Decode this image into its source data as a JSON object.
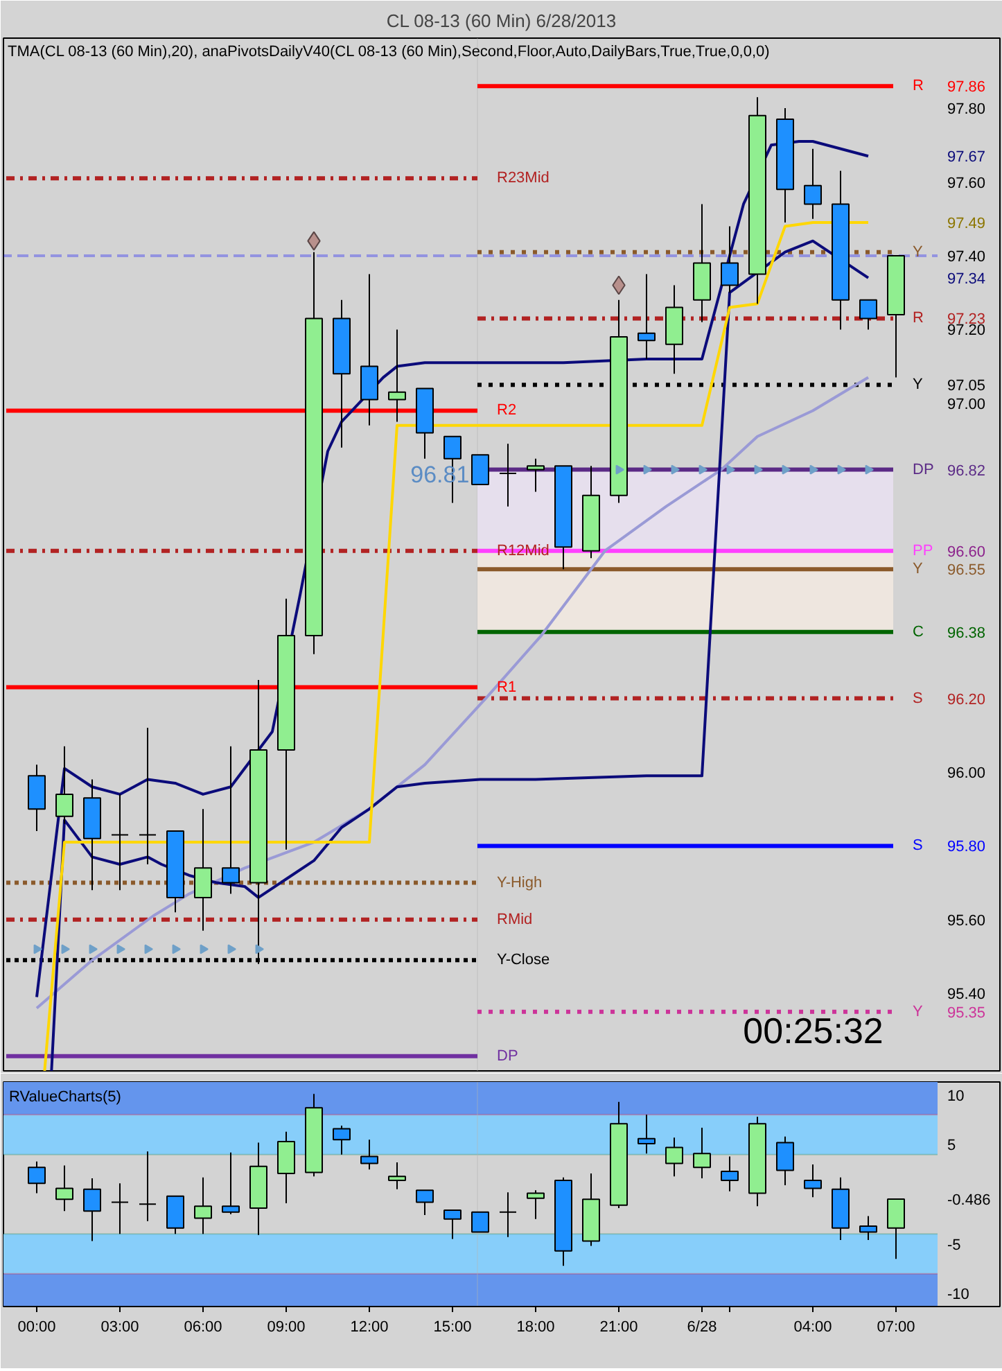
{
  "chart_data": [
    {
      "type": "candlestick",
      "title": "CL 08-13 (60 Min) 6/28/2013",
      "subtitle": "TMA(CL 08-13 (60 Min),20), anaPivotsDailyV40(CL 08-13 (60 Min),Second,Floor,Auto,DailyBars,True,True,0,0,0)",
      "x": [
        "2013-06-27T00:00",
        "2013-06-27T01:00",
        "2013-06-27T02:00",
        "2013-06-27T03:00",
        "2013-06-27T04:00",
        "2013-06-27T05:00",
        "2013-06-27T06:00",
        "2013-06-27T07:00",
        "2013-06-27T08:00",
        "2013-06-27T09:00",
        "2013-06-27T10:00",
        "2013-06-27T11:00",
        "2013-06-27T12:00",
        "2013-06-27T13:00",
        "2013-06-27T14:00",
        "2013-06-27T15:00",
        "2013-06-27T16:00",
        "2013-06-27T17:00",
        "2013-06-27T18:00",
        "2013-06-27T19:00",
        "2013-06-27T20:00",
        "2013-06-27T21:00",
        "2013-06-27T22:00",
        "2013-06-27T23:00",
        "2013-06-28T00:00",
        "2013-06-28T01:00",
        "2013-06-28T02:00",
        "2013-06-28T03:00",
        "2013-06-28T04:00",
        "2013-06-28T05:00",
        "2013-06-28T06:00",
        "2013-06-28T07:00"
      ],
      "ohlc": [
        [
          95.99,
          96.02,
          95.84,
          95.9
        ],
        [
          95.88,
          96.07,
          95.86,
          95.94
        ],
        [
          95.93,
          95.98,
          95.68,
          95.82
        ],
        [
          95.83,
          95.94,
          95.68,
          95.83
        ],
        [
          95.83,
          96.12,
          95.75,
          95.83
        ],
        [
          95.84,
          95.84,
          95.62,
          95.66
        ],
        [
          95.66,
          95.9,
          95.57,
          95.74
        ],
        [
          95.74,
          96.07,
          95.67,
          95.7
        ],
        [
          95.7,
          96.25,
          95.48,
          96.06
        ],
        [
          96.06,
          96.47,
          95.79,
          96.37
        ],
        [
          96.37,
          97.41,
          96.32,
          97.23
        ],
        [
          97.23,
          97.28,
          96.88,
          97.08
        ],
        [
          97.1,
          97.35,
          96.94,
          97.01
        ],
        [
          97.01,
          97.2,
          96.95,
          97.03
        ],
        [
          97.04,
          97.04,
          96.85,
          96.92
        ],
        [
          96.91,
          96.91,
          96.73,
          96.85
        ],
        [
          96.86,
          96.86,
          96.78,
          96.78
        ],
        [
          96.81,
          96.89,
          96.72,
          96.81
        ],
        [
          96.82,
          96.85,
          96.76,
          96.83
        ],
        [
          96.83,
          96.83,
          96.55,
          96.61
        ],
        [
          96.6,
          96.83,
          96.58,
          96.75
        ],
        [
          96.75,
          97.28,
          96.73,
          97.18
        ],
        [
          97.19,
          97.35,
          97.12,
          97.17
        ],
        [
          97.16,
          97.32,
          97.08,
          97.26
        ],
        [
          97.28,
          97.54,
          97.22,
          97.38
        ],
        [
          97.38,
          97.48,
          97.3,
          97.32
        ],
        [
          97.35,
          97.83,
          97.27,
          97.78
        ],
        [
          97.77,
          97.8,
          97.49,
          97.58
        ],
        [
          97.59,
          97.69,
          97.5,
          97.54
        ],
        [
          97.54,
          97.63,
          97.2,
          97.28
        ],
        [
          97.28,
          97.28,
          97.2,
          97.23
        ],
        [
          97.24,
          97.4,
          97.07,
          97.4
        ]
      ],
      "colors": [
        "#1e90ff",
        "#90ee90",
        "#1e90ff",
        "#000000",
        "#000000",
        "#1e90ff",
        "#90ee90",
        "#1e90ff",
        "#90ee90",
        "#90ee90",
        "#90ee90",
        "#1e90ff",
        "#1e90ff",
        "#90ee90",
        "#1e90ff",
        "#1e90ff",
        "#1e90ff",
        "#000000",
        "#90ee90",
        "#1e90ff",
        "#90ee90",
        "#90ee90",
        "#1e90ff",
        "#90ee90",
        "#90ee90",
        "#1e90ff",
        "#90ee90",
        "#1e90ff",
        "#1e90ff",
        "#1e90ff",
        "#1e90ff",
        "#90ee90"
      ],
      "xlim": [
        "2013-06-26T22:48",
        "2013-06-28T10:45"
      ],
      "ylim": [
        95.19,
        97.99
      ],
      "yticks": [
        {
          "value": 97.86,
          "label": "97.86"
        },
        {
          "value": 97.8,
          "label": "97.80"
        },
        {
          "value": 97.67,
          "label": "97.67"
        },
        {
          "value": 97.6,
          "label": "97.60"
        },
        {
          "value": 97.49,
          "label": "97.49"
        },
        {
          "value": 97.4,
          "label": "97.40"
        },
        {
          "value": 97.34,
          "label": "97.34"
        },
        {
          "value": 97.23,
          "label": "97.23"
        },
        {
          "value": 97.2,
          "label": "97.20"
        },
        {
          "value": 97.05,
          "label": "97.05"
        },
        {
          "value": 97.0,
          "label": "97.00"
        },
        {
          "value": 96.82,
          "label": "96.82"
        },
        {
          "value": 96.6,
          "label": "96.60"
        },
        {
          "value": 96.55,
          "label": "96.55"
        },
        {
          "value": 96.38,
          "label": "96.38"
        },
        {
          "value": 96.2,
          "label": "96.20"
        },
        {
          "value": 96.0,
          "label": "96.00"
        },
        {
          "value": 95.8,
          "label": "95.80"
        },
        {
          "value": 95.6,
          "label": "95.60"
        },
        {
          "value": 95.4,
          "label": "95.40"
        },
        {
          "value": 95.35,
          "label": "95.35"
        }
      ],
      "tick_labels": "y",
      "ref_lines": [
        {
          "axis": "y",
          "value": 97.4,
          "color": "#0000ff",
          "line_style": "dashed"
        },
        {
          "axis": "x",
          "value": "2013-06-27T15:54",
          "color": "#b4b4b4"
        }
      ],
      "annotations": [
        "96.81",
        "00:25:32"
      ],
      "series": [
        {
          "type": "line",
          "name": "R23Mid",
          "x": [
            "2013-06-26T22:54",
            "2013-06-27T15:54"
          ],
          "values": [
            97.61,
            97.61
          ],
          "color": "#b22222",
          "line_style": "dashdot"
        },
        {
          "type": "line",
          "name": "R2",
          "x": [
            "2013-06-26T22:54",
            "2013-06-27T15:54"
          ],
          "values": [
            96.98,
            96.98
          ],
          "color": "#ff0000",
          "line_style": "solid"
        },
        {
          "type": "line",
          "name": "R12Mid",
          "x": [
            "2013-06-26T22:54",
            "2013-06-27T15:54"
          ],
          "values": [
            96.6,
            96.6
          ],
          "color": "#b22222",
          "line_style": "dashdot"
        },
        {
          "type": "line",
          "name": "R1",
          "x": [
            "2013-06-26T22:54",
            "2013-06-27T15:54"
          ],
          "values": [
            96.23,
            96.23
          ],
          "color": "#ff0000",
          "line_style": "solid"
        },
        {
          "type": "line",
          "name": "Y-High",
          "x": [
            "2013-06-26T22:54",
            "2013-06-27T15:54"
          ],
          "values": [
            95.7,
            95.7
          ],
          "color": "#8b5a2b",
          "line_style": "dotted"
        },
        {
          "type": "line",
          "name": "RMid",
          "x": [
            "2013-06-26T22:54",
            "2013-06-27T15:54"
          ],
          "values": [
            95.6,
            95.6
          ],
          "color": "#b22222",
          "line_style": "dashdot"
        },
        {
          "type": "line",
          "name": "Y-Close",
          "x": [
            "2013-06-26T22:54",
            "2013-06-27T15:54"
          ],
          "values": [
            95.49,
            95.49
          ],
          "color": "#000000",
          "line_style": "dotted"
        },
        {
          "type": "line",
          "name": "DP",
          "x": [
            "2013-06-26T22:54",
            "2013-06-27T15:54"
          ],
          "values": [
            95.23,
            95.23
          ],
          "color": "#7030a0",
          "line_style": "solid"
        },
        {
          "type": "line",
          "name": "R",
          "x": [
            "2013-06-27T15:54",
            "2013-06-28T06:54"
          ],
          "values": [
            97.86,
            97.86
          ],
          "color": "#ff0000",
          "line_style": "solid"
        },
        {
          "type": "line",
          "name": "Y",
          "x": [
            "2013-06-27T15:54",
            "2013-06-28T06:54"
          ],
          "values": [
            97.41,
            97.41
          ],
          "color": "#8b5a2b",
          "line_style": "dotted"
        },
        {
          "type": "line",
          "name": "R",
          "x": [
            "2013-06-27T15:54",
            "2013-06-28T06:54"
          ],
          "values": [
            97.23,
            97.23
          ],
          "color": "#b22222",
          "line_style": "dashdot"
        },
        {
          "type": "line",
          "name": "Y",
          "x": [
            "2013-06-27T15:54",
            "2013-06-28T06:54"
          ],
          "values": [
            97.05,
            97.05
          ],
          "color": "#000000",
          "line_style": "dotted"
        },
        {
          "type": "line",
          "name": "DP",
          "x": [
            "2013-06-27T15:54",
            "2013-06-28T06:54"
          ],
          "values": [
            96.82,
            96.82
          ],
          "color": "#5b2a86",
          "line_style": "solid",
          "lower": [
            96.6,
            96.6
          ],
          "upper": [
            96.82,
            96.82
          ]
        },
        {
          "type": "line",
          "name": "PP",
          "x": [
            "2013-06-27T15:54",
            "2013-06-28T06:54"
          ],
          "values": [
            96.6,
            96.6
          ],
          "color": "#ff40ff",
          "line_style": "solid"
        },
        {
          "type": "line",
          "name": "Y",
          "x": [
            "2013-06-27T15:54",
            "2013-06-28T06:54"
          ],
          "values": [
            96.55,
            96.55
          ],
          "color": "#8b5a2b",
          "line_style": "solid",
          "lower": [
            96.38,
            96.38
          ],
          "upper": [
            96.6,
            96.6
          ]
        },
        {
          "type": "line",
          "name": "C",
          "x": [
            "2013-06-27T15:54",
            "2013-06-28T06:54"
          ],
          "values": [
            96.38,
            96.38
          ],
          "color": "#006400",
          "line_style": "solid"
        },
        {
          "type": "line",
          "name": "S",
          "x": [
            "2013-06-27T15:54",
            "2013-06-28T06:54"
          ],
          "values": [
            96.2,
            96.2
          ],
          "color": "#b22222",
          "line_style": "dashdot"
        },
        {
          "type": "line",
          "name": "S",
          "x": [
            "2013-06-27T15:54",
            "2013-06-28T06:54"
          ],
          "values": [
            95.8,
            95.8
          ],
          "color": "#0000ff",
          "line_style": "solid"
        },
        {
          "type": "line",
          "name": "Y",
          "x": [
            "2013-06-27T15:54",
            "2013-06-28T06:54"
          ],
          "values": [
            95.35,
            95.35
          ],
          "color": "#cc3399",
          "line_style": "dotted"
        },
        {
          "type": "line",
          "x": [
            "2013-06-27T00:00",
            "2013-06-27T02:00",
            "2013-06-27T04:12",
            "2013-06-27T05:30",
            "2013-06-27T07:30",
            "2013-06-27T10:00",
            "2013-06-27T12:00",
            "2013-06-27T14:00",
            "2013-06-27T16:12",
            "2013-06-27T18:12",
            "2013-06-27T20:30",
            "2013-06-27T22:42",
            "2013-06-28T00:42",
            "2013-06-28T02:00",
            "2013-06-28T04:00",
            "2013-06-28T06:00"
          ],
          "values": [
            95.36,
            95.49,
            95.61,
            95.67,
            95.74,
            95.81,
            95.9,
            96.02,
            96.2,
            96.37,
            96.6,
            96.72,
            96.82,
            96.91,
            96.98,
            97.07
          ],
          "color": "#9a9ad6"
        },
        {
          "type": "line",
          "x": [
            "2013-06-27T00:00",
            "2013-06-27T01:00",
            "2013-06-27T02:00",
            "2013-06-27T03:00",
            "2013-06-27T04:00",
            "2013-06-27T05:00",
            "2013-06-27T06:00",
            "2013-06-27T07:00",
            "2013-06-27T08:30",
            "2013-06-27T09:30",
            "2013-06-27T10:30",
            "2013-06-27T11:00",
            "2013-06-27T11:30",
            "2013-06-27T12:30",
            "2013-06-27T13:00",
            "2013-06-27T14:00",
            "2013-06-27T16:00",
            "2013-06-27T19:00",
            "2013-06-27T22:00",
            "2013-06-28T00:00",
            "2013-06-28T01:30",
            "2013-06-28T02:30",
            "2013-06-28T03:30",
            "2013-06-28T04:00",
            "2013-06-28T06:00"
          ],
          "values": [
            95.39,
            96.01,
            95.96,
            95.94,
            95.98,
            95.97,
            95.94,
            95.96,
            96.11,
            96.48,
            96.87,
            96.95,
            96.99,
            97.07,
            97.1,
            97.11,
            97.11,
            97.11,
            97.12,
            97.12,
            97.54,
            97.7,
            97.71,
            97.71,
            97.67
          ],
          "color": "#0b0b7a"
        },
        {
          "type": "line",
          "x": [
            "2013-06-27T00:32",
            "2013-06-27T01:00",
            "2013-06-27T02:00",
            "2013-06-27T03:00",
            "2013-06-27T04:00",
            "2013-06-27T04:30",
            "2013-06-27T05:30",
            "2013-06-27T06:30",
            "2013-06-27T07:30",
            "2013-06-27T08:00",
            "2013-06-27T09:00",
            "2013-06-27T10:00",
            "2013-06-27T11:00",
            "2013-06-27T12:00",
            "2013-06-27T13:00",
            "2013-06-27T14:00",
            "2013-06-27T16:00",
            "2013-06-27T18:00",
            "2013-06-27T22:00",
            "2013-06-28T00:00",
            "2013-06-28T01:00",
            "2013-06-28T03:00",
            "2013-06-28T04:00",
            "2013-06-28T06:00"
          ],
          "values": [
            95.19,
            95.87,
            95.77,
            95.75,
            95.77,
            95.75,
            95.72,
            95.7,
            95.69,
            95.66,
            95.71,
            95.76,
            95.85,
            95.9,
            95.96,
            95.97,
            95.98,
            95.98,
            95.99,
            95.99,
            97.3,
            97.41,
            97.44,
            97.34
          ],
          "color": "#0b0b7a"
        },
        {
          "type": "line",
          "x": [
            "2013-06-27T00:17",
            "2013-06-27T01:00",
            "2013-06-27T12:00",
            "2013-06-27T13:00",
            "2013-06-28T00:00",
            "2013-06-28T01:00",
            "2013-06-28T02:00",
            "2013-06-28T03:00",
            "2013-06-28T04:00",
            "2013-06-28T06:00"
          ],
          "values": [
            95.19,
            95.81,
            95.81,
            96.94,
            96.94,
            97.26,
            97.27,
            97.48,
            97.49,
            97.49
          ],
          "color": "#ffd700"
        },
        {
          "type": "scatter",
          "x": [
            "2013-06-27T10:00",
            "2013-06-27T21:00"
          ],
          "values": [
            97.44,
            97.32
          ],
          "color": "#b8908c",
          "marker": "diamond"
        },
        {
          "type": "scatter",
          "x": [
            "2013-06-27T00:00",
            "2013-06-27T01:00",
            "2013-06-27T02:00",
            "2013-06-27T03:00",
            "2013-06-27T04:00",
            "2013-06-27T05:00",
            "2013-06-27T06:00",
            "2013-06-27T07:00",
            "2013-06-27T08:00"
          ],
          "values": [
            95.52,
            95.52,
            95.52,
            95.52,
            95.52,
            95.52,
            95.52,
            95.52,
            95.52
          ],
          "color": "#6fa0c8",
          "marker": "triangle"
        },
        {
          "type": "scatter",
          "x": [
            "2013-06-27T21:00",
            "2013-06-27T22:00",
            "2013-06-27T23:00",
            "2013-06-28T00:00",
            "2013-06-28T01:00",
            "2013-06-28T02:00",
            "2013-06-28T03:00",
            "2013-06-28T04:00",
            "2013-06-28T05:00",
            "2013-06-28T06:00"
          ],
          "values": [
            96.82,
            96.82,
            96.82,
            96.82,
            96.82,
            96.82,
            96.82,
            96.82,
            96.82,
            96.82
          ],
          "color": "#6fa0c8",
          "marker": "triangle"
        }
      ]
    },
    {
      "type": "candlestick",
      "title": "RValueCharts(5)",
      "x": [
        "2013-06-27T00:00",
        "2013-06-27T01:00",
        "2013-06-27T02:00",
        "2013-06-27T03:00",
        "2013-06-27T04:00",
        "2013-06-27T05:00",
        "2013-06-27T06:00",
        "2013-06-27T07:00",
        "2013-06-27T08:00",
        "2013-06-27T09:00",
        "2013-06-27T10:00",
        "2013-06-27T11:00",
        "2013-06-27T12:00",
        "2013-06-27T13:00",
        "2013-06-27T14:00",
        "2013-06-27T15:00",
        "2013-06-27T16:00",
        "2013-06-27T17:00",
        "2013-06-27T18:00",
        "2013-06-27T19:00",
        "2013-06-27T20:00",
        "2013-06-27T21:00",
        "2013-06-27T22:00",
        "2013-06-27T23:00",
        "2013-06-28T00:00",
        "2013-06-28T01:00",
        "2013-06-28T02:00",
        "2013-06-28T03:00",
        "2013-06-28T04:00",
        "2013-06-28T05:00",
        "2013-06-28T06:00",
        "2013-06-28T07:00"
      ],
      "ohlc": [
        [
          2.7,
          3.3,
          0.1,
          1.1
        ],
        [
          -0.5,
          2.9,
          -1.7,
          0.6
        ],
        [
          0.5,
          1.6,
          -4.7,
          -1.7
        ],
        [
          -0.8,
          1.1,
          -4.0,
          -0.8
        ],
        [
          -1.0,
          4.3,
          -2.7,
          -1.0
        ],
        [
          -0.2,
          -0.2,
          -4.0,
          -3.4
        ],
        [
          -2.4,
          1.7,
          -4.0,
          -1.2
        ],
        [
          -1.2,
          4.2,
          -2.0,
          -1.8
        ],
        [
          -1.4,
          5.2,
          -4.1,
          2.8
        ],
        [
          2.1,
          6.3,
          -0.9,
          5.3
        ],
        [
          2.2,
          10.1,
          1.8,
          8.7
        ],
        [
          6.6,
          6.9,
          4.0,
          5.5
        ],
        [
          3.8,
          5.5,
          2.5,
          3.1
        ],
        [
          1.4,
          3.2,
          0.5,
          1.8
        ],
        [
          0.4,
          0.4,
          -2.1,
          -0.8
        ],
        [
          -1.6,
          -1.6,
          -4.5,
          -2.5
        ],
        [
          -1.8,
          -1.8,
          -3.8,
          -3.8
        ],
        [
          -1.8,
          0.2,
          -4.3,
          -1.8
        ],
        [
          -0.4,
          0.4,
          -2.5,
          0.1
        ],
        [
          1.4,
          1.7,
          -7.2,
          -5.7
        ],
        [
          -4.7,
          2.1,
          -5.2,
          -0.5
        ],
        [
          -1.1,
          9.3,
          -1.4,
          7.1
        ],
        [
          5.6,
          8.0,
          4.1,
          5.1
        ],
        [
          3.1,
          5.7,
          1.8,
          4.7
        ],
        [
          2.7,
          6.7,
          1.6,
          4.1
        ],
        [
          2.3,
          3.8,
          0.3,
          1.4
        ],
        [
          0.1,
          7.8,
          -1.2,
          7.1
        ],
        [
          5.2,
          5.8,
          0.9,
          2.4
        ],
        [
          1.4,
          3.0,
          -0.3,
          0.6
        ],
        [
          0.5,
          1.7,
          -4.6,
          -3.4
        ],
        [
          -3.2,
          -2.2,
          -4.6,
          -3.8
        ],
        [
          -3.4,
          -0.486,
          -6.5,
          -0.486
        ]
      ],
      "colors": [
        "#1e90ff",
        "#90ee90",
        "#1e90ff",
        "#000000",
        "#000000",
        "#1e90ff",
        "#90ee90",
        "#1e90ff",
        "#90ee90",
        "#90ee90",
        "#90ee90",
        "#1e90ff",
        "#1e90ff",
        "#90ee90",
        "#1e90ff",
        "#1e90ff",
        "#1e90ff",
        "#000000",
        "#90ee90",
        "#1e90ff",
        "#90ee90",
        "#90ee90",
        "#1e90ff",
        "#90ee90",
        "#90ee90",
        "#1e90ff",
        "#90ee90",
        "#1e90ff",
        "#1e90ff",
        "#1e90ff",
        "#1e90ff",
        "#90ee90"
      ],
      "xlim": [
        "2013-06-26T22:48",
        "2013-06-28T10:45"
      ],
      "ylim": [
        -11.3,
        11.3
      ],
      "xticks": [
        {
          "value": "2013-06-27T00:00",
          "label": "00:00"
        },
        {
          "value": "2013-06-27T03:00",
          "label": "03:00"
        },
        {
          "value": "2013-06-27T06:00",
          "label": "06:00"
        },
        {
          "value": "2013-06-27T09:00",
          "label": "09:00"
        },
        {
          "value": "2013-06-27T12:00",
          "label": "12:00"
        },
        {
          "value": "2013-06-27T15:00",
          "label": "15:00"
        },
        {
          "value": "2013-06-27T18:00",
          "label": "18:00"
        },
        {
          "value": "2013-06-27T21:00",
          "label": "21:00"
        },
        {
          "value": "2013-06-28T00:00",
          "label": "6/28"
        },
        {
          "value": "2013-06-28T01:00",
          "label": null
        },
        {
          "value": "2013-06-28T04:00",
          "label": "04:00"
        },
        {
          "value": "2013-06-28T07:00",
          "label": "07:00"
        }
      ],
      "yticks": [
        10,
        5,
        {
          "value": -0.486,
          "label": "-0.486"
        },
        -5,
        -10
      ],
      "bands": [
        {
          "axis": "y",
          "from": 8,
          "to": 11.3,
          "color": "#6495ed"
        },
        {
          "axis": "y",
          "from": 4,
          "to": 8,
          "color": "#87cefa"
        },
        {
          "axis": "y",
          "from": -8,
          "to": -4,
          "color": "#87cefa"
        },
        {
          "axis": "y",
          "from": -11.3,
          "to": -8,
          "color": "#6495ed"
        }
      ],
      "ref_lines": [
        {
          "axis": "y",
          "value": 8,
          "color": "#dc143c"
        },
        {
          "axis": "y",
          "value": 4,
          "color": "#2e8b57"
        },
        {
          "axis": "y",
          "value": -4,
          "color": "#2e8b57"
        },
        {
          "axis": "y",
          "value": -8,
          "color": "#dc143c"
        },
        {
          "axis": "x",
          "value": "2013-06-27T15:54",
          "color": "#b4b4b4"
        }
      ]
    }
  ]
}
